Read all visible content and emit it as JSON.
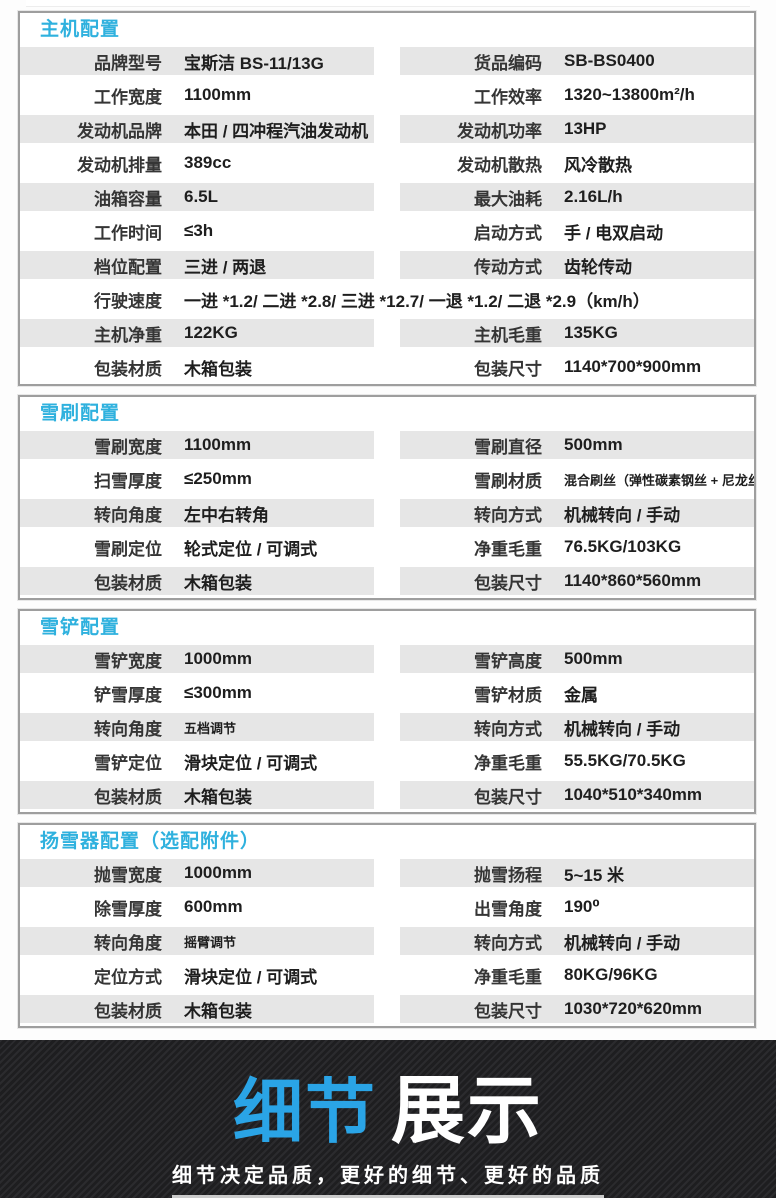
{
  "colors": {
    "section_title": "#2fb1de",
    "stripe_gray": "#e6e6e6",
    "card_border": "#9e9e9e",
    "banner_bg_dark": "#1e1e20",
    "banner_blue": "#2aa4e6",
    "banner_white": "#ffffff"
  },
  "sections": [
    {
      "title": "主机配置",
      "rows": [
        {
          "cells": [
            {
              "label": "品牌型号",
              "value": "宝斯洁 BS-11/13G"
            },
            {
              "label": "货品编码",
              "value": "SB-BS0400"
            }
          ]
        },
        {
          "cells": [
            {
              "label": "工作宽度",
              "value": "1100mm"
            },
            {
              "label": "工作效率",
              "value": "1320~13800m²/h"
            }
          ]
        },
        {
          "cells": [
            {
              "label": "发动机品牌",
              "value": "本田 / 四冲程汽油发动机"
            },
            {
              "label": "发动机功率",
              "value": "13HP"
            }
          ]
        },
        {
          "cells": [
            {
              "label": "发动机排量",
              "value": "389cc"
            },
            {
              "label": "发动机散热",
              "value": "风冷散热"
            }
          ]
        },
        {
          "cells": [
            {
              "label": "油箱容量",
              "value": "6.5L"
            },
            {
              "label": "最大油耗",
              "value": "2.16L/h"
            }
          ]
        },
        {
          "cells": [
            {
              "label": "工作时间",
              "value": "≤3h"
            },
            {
              "label": "启动方式",
              "value": "手 / 电双启动"
            }
          ]
        },
        {
          "cells": [
            {
              "label": "档位配置",
              "value": "三进 / 两退"
            },
            {
              "label": "传动方式",
              "value": "齿轮传动"
            }
          ]
        },
        {
          "full": true,
          "label": "行驶速度",
          "value": "一进 *1.2/ 二进 *2.8/ 三进 *12.7/ 一退 *1.2/ 二退 *2.9（km/h）"
        },
        {
          "cells": [
            {
              "label": "主机净重",
              "value": "122KG"
            },
            {
              "label": "主机毛重",
              "value": "135KG"
            }
          ]
        },
        {
          "cells": [
            {
              "label": "包装材质",
              "value": "木箱包装"
            },
            {
              "label": "包装尺寸",
              "value": "1140*700*900mm"
            }
          ]
        }
      ]
    },
    {
      "title": "雪刷配置",
      "rows": [
        {
          "cells": [
            {
              "label": "雪刷宽度",
              "value": "1100mm"
            },
            {
              "label": "雪刷直径",
              "value": "500mm"
            }
          ]
        },
        {
          "cells": [
            {
              "label": "扫雪厚度",
              "value": "≤250mm"
            },
            {
              "label": "雪刷材质",
              "value": "混合刷丝（弹性碳素钢丝 + 尼龙丝）",
              "small": true
            }
          ]
        },
        {
          "cells": [
            {
              "label": "转向角度",
              "value": "左中右转角"
            },
            {
              "label": "转向方式",
              "value": "机械转向 / 手动"
            }
          ]
        },
        {
          "cells": [
            {
              "label": "雪刷定位",
              "value": "轮式定位 / 可调式"
            },
            {
              "label": "净重毛重",
              "value": "76.5KG/103KG"
            }
          ]
        },
        {
          "cells": [
            {
              "label": "包装材质",
              "value": "木箱包装"
            },
            {
              "label": "包装尺寸",
              "value": "1140*860*560mm"
            }
          ]
        }
      ]
    },
    {
      "title": "雪铲配置",
      "rows": [
        {
          "cells": [
            {
              "label": "雪铲宽度",
              "value": "1000mm"
            },
            {
              "label": "雪铲高度",
              "value": "500mm"
            }
          ]
        },
        {
          "cells": [
            {
              "label": "铲雪厚度",
              "value": "≤300mm"
            },
            {
              "label": "雪铲材质",
              "value": "金属"
            }
          ]
        },
        {
          "cells": [
            {
              "label": "转向角度",
              "value": "五档调节",
              "small": true
            },
            {
              "label": "转向方式",
              "value": "机械转向 / 手动"
            }
          ]
        },
        {
          "cells": [
            {
              "label": "雪铲定位",
              "value": "滑块定位 / 可调式"
            },
            {
              "label": "净重毛重",
              "value": "55.5KG/70.5KG"
            }
          ]
        },
        {
          "cells": [
            {
              "label": "包装材质",
              "value": "木箱包装"
            },
            {
              "label": "包装尺寸",
              "value": "1040*510*340mm"
            }
          ]
        }
      ]
    },
    {
      "title": "扬雪器配置（选配附件）",
      "rows": [
        {
          "cells": [
            {
              "label": "抛雪宽度",
              "value": "1000mm"
            },
            {
              "label": "抛雪扬程",
              "value": "5~15 米"
            }
          ]
        },
        {
          "cells": [
            {
              "label": "除雪厚度",
              "value": "600mm"
            },
            {
              "label": "出雪角度",
              "value": "190⁰"
            }
          ]
        },
        {
          "cells": [
            {
              "label": "转向角度",
              "value": "摇臂调节",
              "small": true
            },
            {
              "label": "转向方式",
              "value": "机械转向 / 手动"
            }
          ]
        },
        {
          "cells": [
            {
              "label": "定位方式",
              "value": "滑块定位 / 可调式"
            },
            {
              "label": "净重毛重",
              "value": "80KG/96KG"
            }
          ]
        },
        {
          "cells": [
            {
              "label": "包装材质",
              "value": "木箱包装"
            },
            {
              "label": "包装尺寸",
              "value": "1030*720*620mm"
            }
          ]
        }
      ]
    }
  ],
  "banner": {
    "title_highlight": "细节",
    "title_rest": "展示",
    "subtitle": "细节决定品质，更好的细节、更好的品质"
  }
}
